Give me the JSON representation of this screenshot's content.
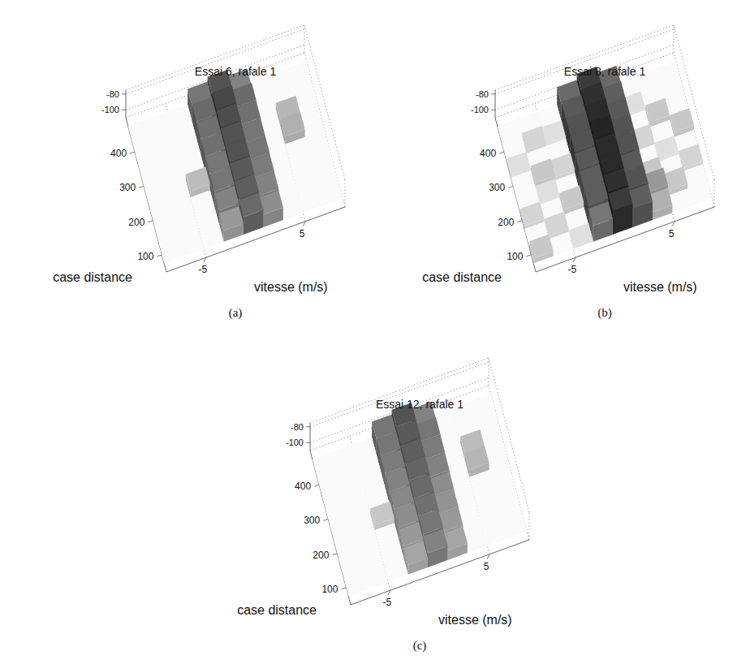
{
  "chart_data": [
    {
      "type": "surface",
      "title": "Essai 6, rafale 1",
      "panel_label": "(a)",
      "x_label": "vitesse (m/s)",
      "y_label": "case distance",
      "x": [
        -8,
        -6,
        -4,
        -2,
        0,
        2,
        4,
        6,
        8
      ],
      "y": [
        100,
        150,
        200,
        250,
        300,
        350,
        400,
        450
      ],
      "xlim": [
        -9,
        9
      ],
      "ylim": [
        50,
        500
      ],
      "zlim": [
        -110,
        -75
      ],
      "xticks": [
        -5,
        5
      ],
      "yticks": [
        100,
        200,
        300,
        400
      ],
      "zticks": [
        -100,
        -80
      ],
      "cells": [
        [
          -110,
          -110,
          -110,
          -96,
          -88,
          -94,
          -110,
          -110,
          -110
        ],
        [
          -110,
          -110,
          -110,
          -92,
          -86,
          -92,
          -110,
          -110,
          -110
        ],
        [
          -110,
          -110,
          -110,
          -90,
          -85,
          -91,
          -110,
          -110,
          -110
        ],
        [
          -110,
          -110,
          -102,
          -90,
          -84,
          -90,
          -110,
          -110,
          -110
        ],
        [
          -110,
          -110,
          -110,
          -89,
          -84,
          -90,
          -110,
          -100,
          -110
        ],
        [
          -110,
          -110,
          -110,
          -89,
          -83,
          -89,
          -110,
          -101,
          -110
        ],
        [
          -110,
          -110,
          -110,
          -88,
          -82,
          -88,
          -110,
          -110,
          -110
        ],
        [
          -110,
          -110,
          -110,
          -90,
          -84,
          -92,
          -110,
          -110,
          -110
        ]
      ]
    },
    {
      "type": "surface",
      "title": "Essai 8, rafale 1",
      "panel_label": "(b)",
      "x_label": "vitesse (m/s)",
      "y_label": "case distance",
      "x": [
        -8,
        -6,
        -4,
        -2,
        0,
        2,
        4,
        6,
        8
      ],
      "y": [
        100,
        150,
        200,
        250,
        300,
        350,
        400,
        450
      ],
      "xlim": [
        -9,
        9
      ],
      "ylim": [
        50,
        500
      ],
      "zlim": [
        -110,
        -75
      ],
      "xticks": [
        -5,
        5
      ],
      "yticks": [
        100,
        200,
        300,
        400
      ],
      "zticks": [
        -100,
        -80
      ],
      "cells": [
        [
          -104,
          -110,
          -108,
          -90,
          -80,
          -86,
          -100,
          -110,
          -110
        ],
        [
          -110,
          -106,
          -110,
          -86,
          -78,
          -84,
          -96,
          -104,
          -110
        ],
        [
          -106,
          -110,
          -104,
          -86,
          -77,
          -85,
          -104,
          -110,
          -106
        ],
        [
          -110,
          -108,
          -110,
          -85,
          -77,
          -84,
          -110,
          -108,
          -110
        ],
        [
          -110,
          -104,
          -106,
          -84,
          -76,
          -84,
          -106,
          -110,
          -104
        ],
        [
          -108,
          -110,
          -110,
          -84,
          -77,
          -85,
          -110,
          -104,
          -110
        ],
        [
          -110,
          -106,
          -108,
          -85,
          -78,
          -86,
          -108,
          -110,
          -110
        ],
        [
          -110,
          -110,
          -110,
          -88,
          -80,
          -88,
          -110,
          -110,
          -110
        ]
      ]
    },
    {
      "type": "surface",
      "title": "Essai 12, rafale 1",
      "panel_label": "(c)",
      "x_label": "vitesse (m/s)",
      "y_label": "case distance",
      "x": [
        -8,
        -6,
        -4,
        -2,
        0,
        2,
        4,
        6,
        8
      ],
      "y": [
        100,
        150,
        200,
        250,
        300,
        350,
        400,
        450
      ],
      "xlim": [
        -9,
        9
      ],
      "ylim": [
        50,
        500
      ],
      "zlim": [
        -110,
        -75
      ],
      "xticks": [
        -5,
        5
      ],
      "yticks": [
        100,
        200,
        300,
        400
      ],
      "zticks": [
        -100,
        -80
      ],
      "cells": [
        [
          -110,
          -110,
          -110,
          -98,
          -92,
          -98,
          -110,
          -110,
          -110
        ],
        [
          -110,
          -110,
          -110,
          -96,
          -90,
          -96,
          -110,
          -110,
          -110
        ],
        [
          -110,
          -110,
          -110,
          -94,
          -89,
          -95,
          -110,
          -110,
          -110
        ],
        [
          -110,
          -110,
          -104,
          -93,
          -88,
          -94,
          -110,
          -110,
          -110
        ],
        [
          -110,
          -110,
          -110,
          -92,
          -87,
          -92,
          -110,
          -101,
          -110
        ],
        [
          -110,
          -110,
          -110,
          -91,
          -86,
          -91,
          -110,
          -102,
          -110
        ],
        [
          -110,
          -110,
          -110,
          -90,
          -85,
          -90,
          -110,
          -110,
          -110
        ],
        [
          -110,
          -110,
          -110,
          -90,
          -84,
          -92,
          -110,
          -110,
          -110
        ]
      ]
    }
  ]
}
